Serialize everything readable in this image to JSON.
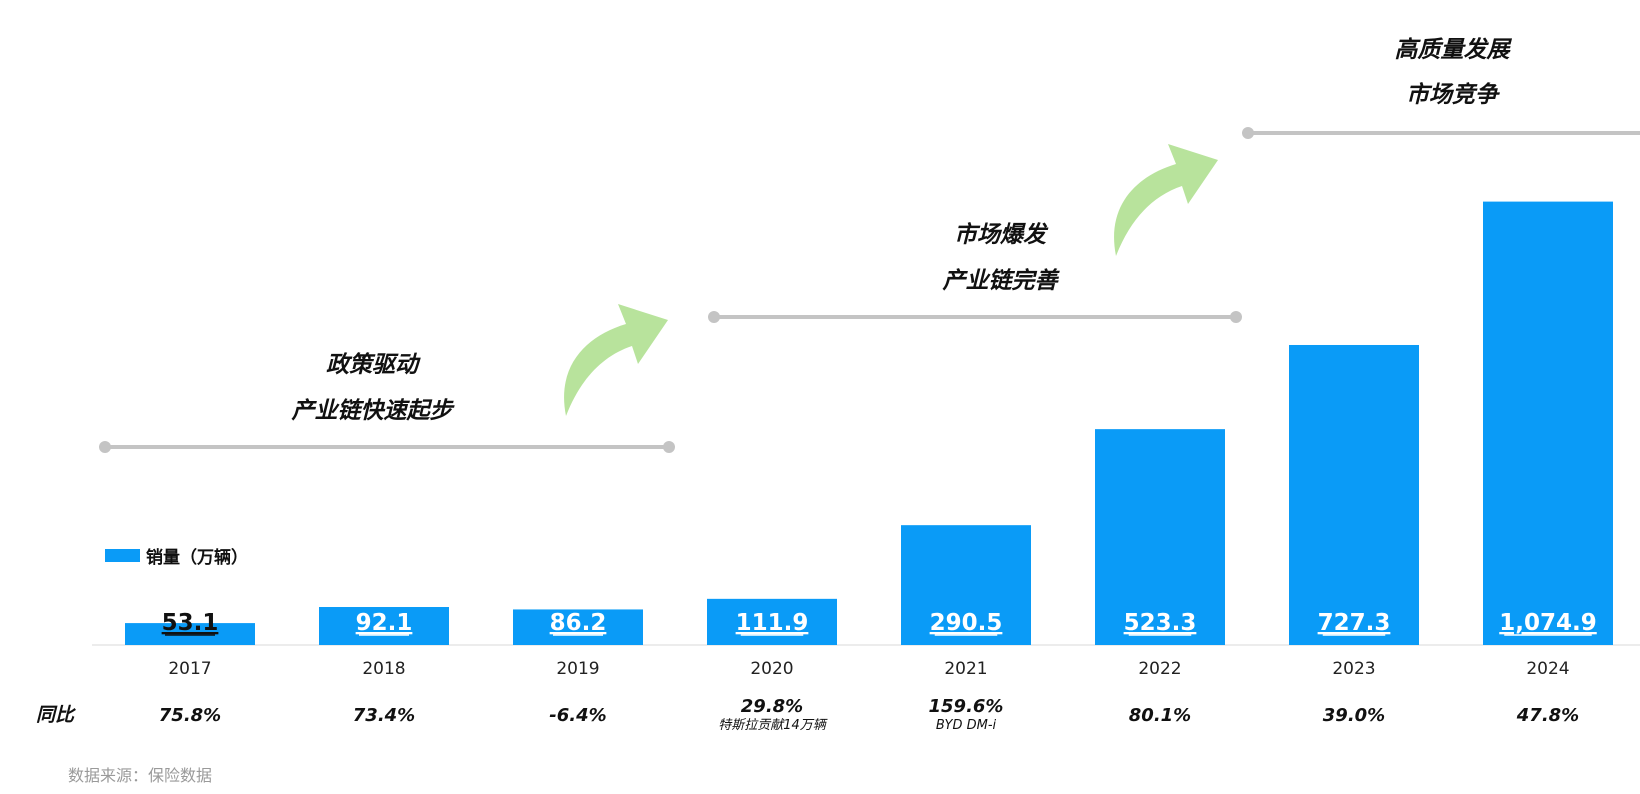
{
  "chart_data": {
    "type": "bar",
    "categories": [
      "2017",
      "2018",
      "2019",
      "2020",
      "2021",
      "2022",
      "2023",
      "2024"
    ],
    "series": [
      {
        "name": "销量（万辆）",
        "values": [
          53.1,
          92.1,
          86.2,
          111.9,
          290.5,
          523.3,
          727.3,
          1074.9
        ]
      }
    ],
    "value_labels": [
      "53.1",
      "92.1",
      "86.2",
      "111.9",
      "290.5",
      "523.3",
      "727.3",
      "1,074.9"
    ],
    "yoy_label": "同比",
    "yoy": [
      "75.8%",
      "73.4%",
      "-6.4%",
      "29.8%",
      "159.6%",
      "80.1%",
      "39.0%",
      "47.8%"
    ],
    "yoy_notes": [
      "",
      "",
      "",
      "特斯拉贡献14万辆",
      "BYD DM-i",
      "",
      "",
      ""
    ],
    "phases": [
      {
        "lines": [
          "政策驱动",
          "产业链快速起步"
        ],
        "from_index": 0,
        "to_index": 2.5
      },
      {
        "lines": [
          "市场爆发",
          "产业链完善"
        ],
        "from_index": 3,
        "to_index": 5.5
      },
      {
        "lines": [
          "高质量发展",
          "市场竞争"
        ],
        "from_index": 6,
        "to_index": 7.5
      }
    ],
    "source": "数据来源：保险数据",
    "colors": {
      "bar": "#0a9bf7",
      "arrow": "#b8e39c",
      "phase_line": "#c4c4c4",
      "axis": "#d8d8d8"
    },
    "grid": false,
    "legend_position": "left, above bars"
  }
}
